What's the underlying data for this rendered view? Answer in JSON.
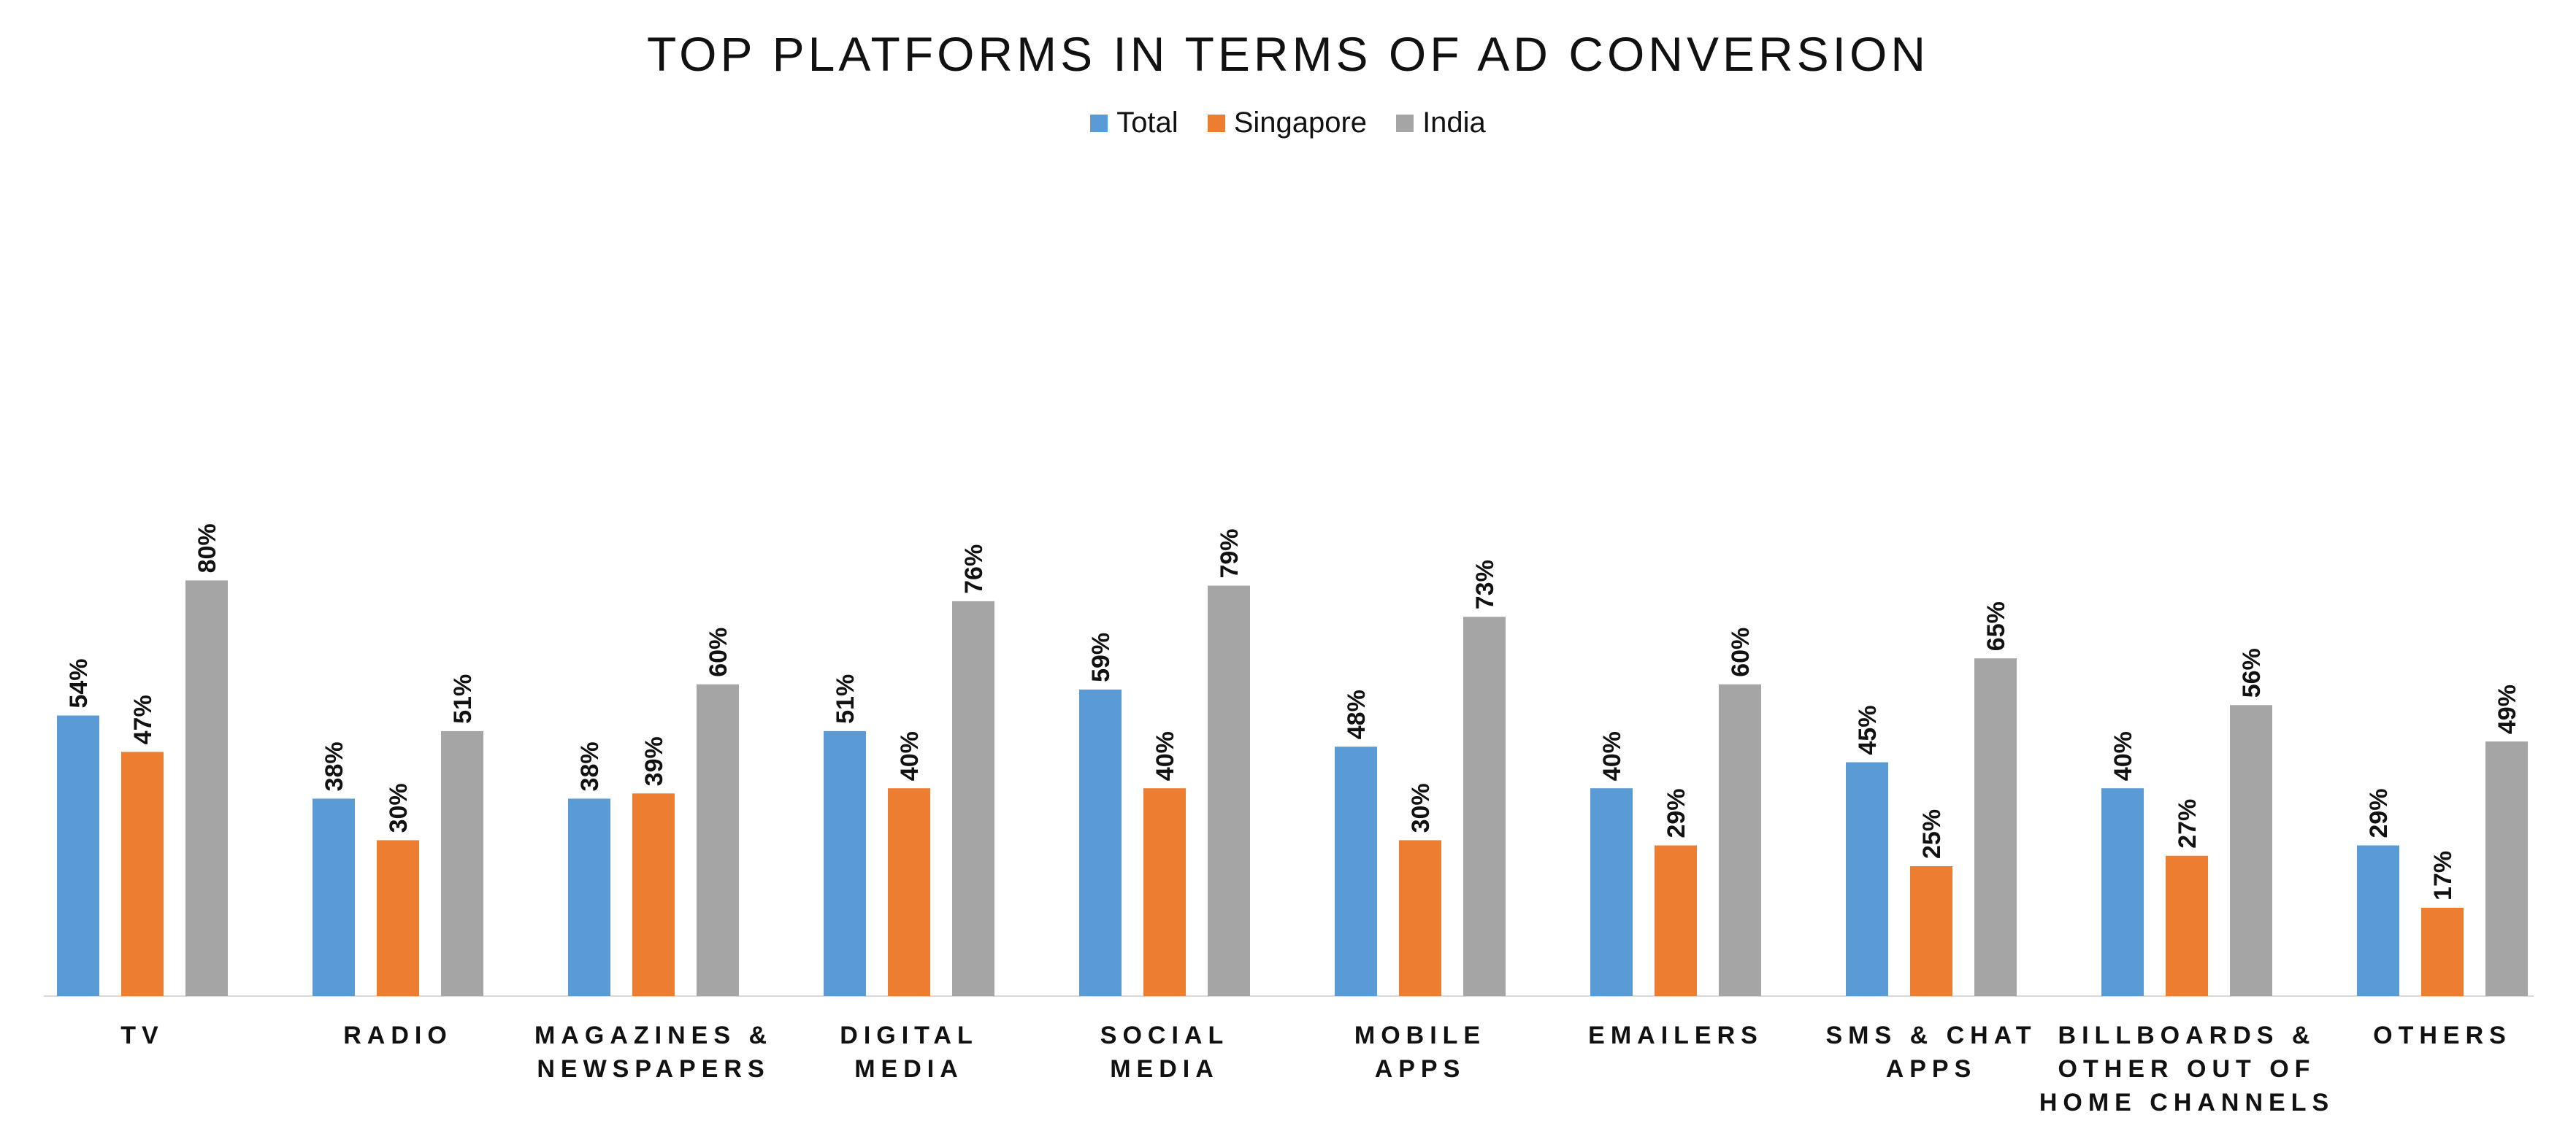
{
  "chart_data": {
    "type": "bar",
    "title": "TOP PLATFORMS IN TERMS OF AD CONVERSION",
    "xlabel": "",
    "ylabel": "",
    "ylim": [
      0,
      100
    ],
    "grid": false,
    "legend_position": "top",
    "categories": [
      [
        "TV"
      ],
      [
        "RADIO"
      ],
      [
        "MAGAZINES &",
        "NEWSPAPERS"
      ],
      [
        "DIGITAL",
        "MEDIA"
      ],
      [
        "SOCIAL",
        "MEDIA"
      ],
      [
        "MOBILE",
        "APPS"
      ],
      [
        "EMAILERS"
      ],
      [
        "SMS & CHAT",
        "APPS"
      ],
      [
        "BILLBOARDS &",
        "OTHER OUT OF",
        "HOME CHANNELS"
      ],
      [
        "OTHERS"
      ]
    ],
    "series": [
      {
        "name": "Total",
        "color": "#5B9BD5",
        "values": [
          54,
          38,
          38,
          51,
          59,
          48,
          40,
          45,
          40,
          29
        ]
      },
      {
        "name": "Singapore",
        "color": "#ED7D31",
        "values": [
          47,
          30,
          39,
          40,
          40,
          30,
          29,
          25,
          27,
          17
        ]
      },
      {
        "name": "India",
        "color": "#A5A5A5",
        "values": [
          80,
          51,
          60,
          76,
          79,
          73,
          60,
          65,
          56,
          49
        ]
      }
    ],
    "value_suffix": "%"
  }
}
